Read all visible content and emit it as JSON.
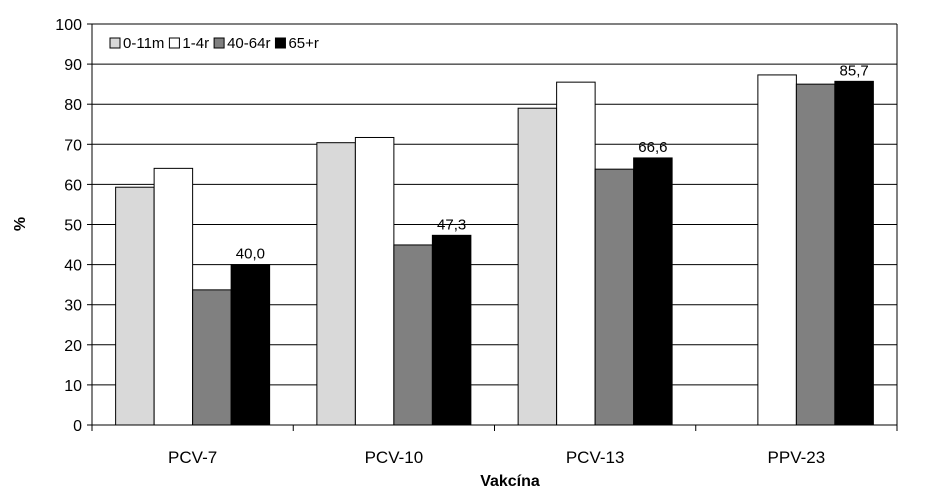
{
  "chart_data": {
    "type": "bar",
    "title": "",
    "xlabel": "Vakcína",
    "ylabel": "%",
    "ylim": [
      0,
      100
    ],
    "yticks": [
      0,
      10,
      20,
      30,
      40,
      50,
      60,
      70,
      80,
      90,
      100
    ],
    "grid": true,
    "legend_position": "top-left",
    "categories": [
      "PCV-7",
      "PCV-10",
      "PCV-13",
      "PPV-23"
    ],
    "series": [
      {
        "name": "0-11m",
        "color": "#d9d9d9",
        "values": [
          59.3,
          70.4,
          79.0,
          null
        ]
      },
      {
        "name": "1-4r",
        "color": "#ffffff",
        "values": [
          64.0,
          71.7,
          85.5,
          87.3
        ]
      },
      {
        "name": "40-64r",
        "color": "#808080",
        "values": [
          33.7,
          44.9,
          63.8,
          85.0
        ]
      },
      {
        "name": "65+r",
        "color": "#000000",
        "values": [
          40.0,
          47.3,
          66.6,
          85.7
        ]
      }
    ],
    "data_labels": [
      {
        "category": "PCV-7",
        "series": "65+r",
        "text": "40,0"
      },
      {
        "category": "PCV-10",
        "series": "65+r",
        "text": "47,3"
      },
      {
        "category": "PCV-13",
        "series": "65+r",
        "text": "66,6"
      },
      {
        "category": "PPV-23",
        "series": "65+r",
        "text": "85,7"
      }
    ]
  }
}
